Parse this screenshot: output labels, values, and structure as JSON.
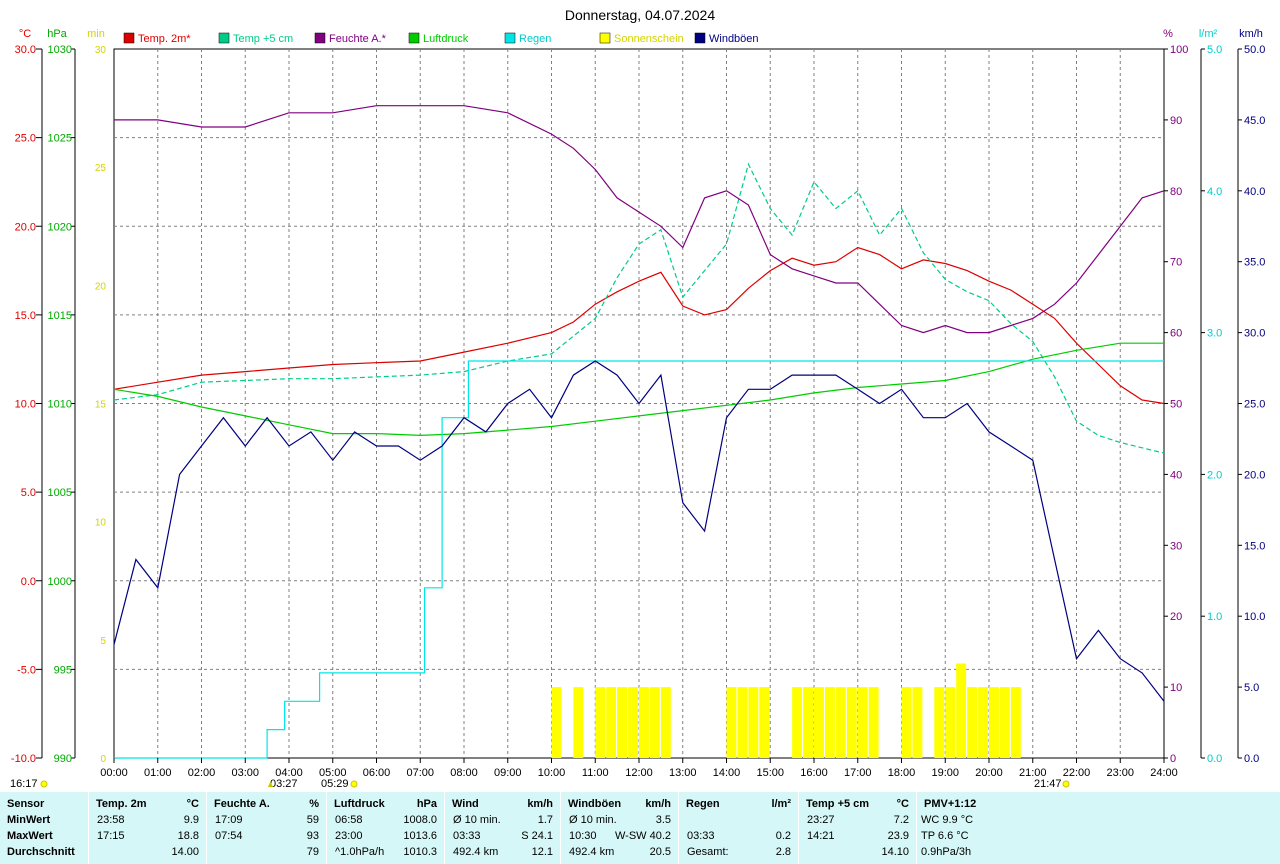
{
  "title": "Donnerstag, 04.07.2024",
  "colors": {
    "temp2m": "#dd0000",
    "temp5cm": "#00cc88",
    "humidity": "#800080",
    "pressure": "#00cc00",
    "rain": "#00e5e5",
    "sunshine": "#ffff00",
    "gusts": "#000080",
    "grid": "#808080",
    "stats_bg": "#d6f7f7"
  },
  "legend": [
    {
      "label": "Temp. 2m*",
      "color": "#dd0000"
    },
    {
      "label": "Temp +5 cm",
      "color": "#00cc88"
    },
    {
      "label": "Feuchte A.*",
      "color": "#800080"
    },
    {
      "label": "Luftdruck",
      "color": "#00cc00"
    },
    {
      "label": "Regen",
      "color": "#00e5e5"
    },
    {
      "label": "Sonnenschein",
      "color": "#ffff00"
    },
    {
      "label": "Windböen",
      "color": "#000080"
    }
  ],
  "axes": {
    "temp": {
      "unit": "°C",
      "min": -10,
      "max": 30,
      "ticks": [
        "30.0",
        "25.0",
        "20.0",
        "15.0",
        "10.0",
        "5.0",
        "0.0",
        "-5.0",
        "-10.0"
      ]
    },
    "pressure": {
      "unit": "hPa",
      "min": 990,
      "max": 1030,
      "ticks": [
        "1030",
        "1025",
        "1020",
        "1015",
        "1010",
        "1005",
        "1000",
        "995",
        "990"
      ]
    },
    "sun_min": {
      "unit": "min",
      "min": 0,
      "max": 30,
      "ticks": [
        "30",
        "25",
        "20",
        "15",
        "10",
        "5",
        "0"
      ]
    },
    "humidity": {
      "unit": "%",
      "min": 0,
      "max": 100,
      "ticks": [
        "100",
        "90",
        "80",
        "70",
        "60",
        "50",
        "40",
        "30",
        "20",
        "10",
        "0"
      ]
    },
    "rain": {
      "unit": "l/m²",
      "min": 0,
      "max": 5,
      "ticks": [
        "5.0",
        "4.0",
        "3.0",
        "2.0",
        "1.0",
        "0.0"
      ]
    },
    "wind": {
      "unit": "km/h",
      "min": 0,
      "max": 50,
      "ticks": [
        "50.0",
        "45.0",
        "40.0",
        "35.0",
        "30.0",
        "25.0",
        "20.0",
        "15.0",
        "10.0",
        "5.0",
        "0.0"
      ]
    },
    "x_ticks": [
      "00:00",
      "01:00",
      "02:00",
      "03:00",
      "04:00",
      "05:00",
      "06:00",
      "07:00",
      "08:00",
      "09:00",
      "10:00",
      "11:00",
      "12:00",
      "13:00",
      "14:00",
      "15:00",
      "16:00",
      "17:00",
      "18:00",
      "19:00",
      "20:00",
      "21:00",
      "22:00",
      "23:00",
      "24:00"
    ]
  },
  "markers": {
    "left": "16:17",
    "moon1": "03:27",
    "sun_rise": "05:29",
    "sun_set": "21:47"
  },
  "chart_data": {
    "type": "line",
    "title": "Donnerstag, 04.07.2024",
    "x_unit": "hour of day",
    "xlim": [
      0,
      24
    ],
    "series": [
      {
        "name": "Temp. 2m*",
        "axis": "temp",
        "x": [
          0,
          1,
          2,
          3,
          4,
          5,
          6,
          7,
          8,
          9,
          10,
          10.5,
          11,
          11.5,
          12,
          12.5,
          13,
          13.5,
          14,
          14.5,
          15,
          15.5,
          16,
          16.5,
          17,
          17.5,
          18,
          18.5,
          19,
          19.5,
          20,
          20.5,
          21,
          21.5,
          22,
          22.5,
          23,
          23.5,
          24
        ],
        "values": [
          10.8,
          11.2,
          11.6,
          11.8,
          12.0,
          12.2,
          12.3,
          12.4,
          12.9,
          13.4,
          14.0,
          14.6,
          15.6,
          16.3,
          16.9,
          17.4,
          15.5,
          15.0,
          15.3,
          16.5,
          17.5,
          18.2,
          17.8,
          18.0,
          18.8,
          18.4,
          17.6,
          18.1,
          17.9,
          17.5,
          16.9,
          16.4,
          15.6,
          14.8,
          13.4,
          12.2,
          11.0,
          10.2,
          10.0
        ]
      },
      {
        "name": "Temp +5 cm",
        "axis": "temp",
        "x": [
          0,
          1,
          2,
          3,
          4,
          5,
          6,
          7,
          8,
          9,
          10,
          10.5,
          11,
          11.5,
          12,
          12.5,
          13,
          13.5,
          14,
          14.5,
          15,
          15.5,
          16,
          16.5,
          17,
          17.5,
          18,
          18.5,
          19,
          19.5,
          20,
          20.5,
          21,
          21.5,
          22,
          22.5,
          23,
          23.5,
          24
        ],
        "values": [
          10.2,
          10.5,
          11.2,
          11.3,
          11.4,
          11.4,
          11.5,
          11.6,
          11.8,
          12.4,
          12.8,
          13.8,
          14.8,
          17.1,
          19.0,
          19.8,
          16.0,
          17.5,
          19.0,
          23.5,
          21.0,
          19.5,
          22.5,
          21.0,
          22.0,
          19.5,
          21.0,
          18.5,
          17.0,
          16.3,
          15.8,
          14.5,
          13.5,
          11.5,
          9.0,
          8.2,
          7.8,
          7.5,
          7.2
        ]
      },
      {
        "name": "Feuchte A.*",
        "axis": "humidity",
        "x": [
          0,
          1,
          2,
          3,
          4,
          5,
          6,
          7,
          8,
          9,
          10,
          10.5,
          11,
          11.5,
          12,
          12.5,
          13,
          13.5,
          14,
          14.5,
          15,
          15.5,
          16,
          16.5,
          17,
          17.5,
          18,
          18.5,
          19,
          19.5,
          20,
          20.5,
          21,
          21.5,
          22,
          22.5,
          23,
          23.5,
          24
        ],
        "values": [
          90,
          90,
          89,
          89,
          91,
          91,
          92,
          92,
          92,
          91,
          88,
          86,
          83,
          79,
          77,
          75,
          72,
          79,
          80,
          78,
          71,
          69,
          68,
          67,
          67,
          64,
          61,
          60,
          61,
          60,
          60,
          61,
          62,
          64,
          67,
          71,
          75,
          79,
          80
        ]
      },
      {
        "name": "Luftdruck",
        "axis": "pressure",
        "x": [
          0,
          1,
          2,
          3,
          4,
          5,
          6,
          7,
          8,
          9,
          10,
          11,
          12,
          13,
          14,
          15,
          16,
          17,
          18,
          19,
          20,
          21,
          22,
          23,
          24
        ],
        "values": [
          1010.8,
          1010.4,
          1009.8,
          1009.3,
          1008.8,
          1008.3,
          1008.3,
          1008.2,
          1008.3,
          1008.5,
          1008.7,
          1009.0,
          1009.3,
          1009.6,
          1009.9,
          1010.2,
          1010.6,
          1010.9,
          1011.1,
          1011.3,
          1011.8,
          1012.5,
          1013.0,
          1013.4,
          1013.4
        ]
      },
      {
        "name": "Regen",
        "axis": "rain",
        "type": "step",
        "x": [
          0,
          3.5,
          3.9,
          4.7,
          6.9,
          7.1,
          7.5,
          8.1,
          24
        ],
        "values": [
          0,
          0.2,
          0.4,
          0.6,
          0.6,
          1.2,
          2.4,
          2.8,
          2.8
        ]
      },
      {
        "name": "Windböen",
        "axis": "wind",
        "x": [
          0,
          0.5,
          1,
          1.5,
          2,
          2.5,
          3,
          3.5,
          4,
          4.5,
          5,
          5.5,
          6,
          6.5,
          7,
          7.5,
          8,
          8.5,
          9,
          9.5,
          10,
          10.5,
          11,
          11.5,
          12,
          12.5,
          13,
          13.5,
          14,
          14.5,
          15,
          15.5,
          16,
          16.5,
          17,
          17.5,
          18,
          18.5,
          19,
          19.5,
          20,
          20.5,
          21,
          21.5,
          22,
          22.5,
          23,
          23.5,
          24
        ],
        "values": [
          8,
          14,
          12,
          20,
          22,
          24,
          22,
          24,
          22,
          23,
          21,
          23,
          22,
          22,
          21,
          22,
          24,
          23,
          25,
          26,
          24,
          27,
          28,
          27,
          25,
          27,
          18,
          16,
          24,
          26,
          26,
          27,
          27,
          27,
          26,
          25,
          26,
          24,
          24,
          25,
          23,
          22,
          21,
          14,
          7,
          9,
          7,
          6,
          4
        ]
      },
      {
        "name": "Sonnenschein",
        "axis": "sun_min",
        "type": "bar",
        "x": [
          10.0,
          10.5,
          11.0,
          11.25,
          11.5,
          11.75,
          12.0,
          12.25,
          12.5,
          14.0,
          14.25,
          14.5,
          14.75,
          15.5,
          15.75,
          16.0,
          16.25,
          16.5,
          16.75,
          17.0,
          17.25,
          18.0,
          18.25,
          18.75,
          19.0,
          19.25,
          19.5,
          19.75,
          20.0,
          20.25,
          20.5
        ],
        "values": [
          3,
          3,
          3,
          3,
          3,
          3,
          3,
          3,
          3,
          3,
          3,
          3,
          3,
          3,
          3,
          3,
          3,
          3,
          3,
          3,
          3,
          3,
          3,
          3,
          3,
          4,
          3,
          3,
          3,
          3,
          3
        ]
      }
    ]
  },
  "stats": {
    "headers": [
      {
        "label": "Sensor",
        "unit": ""
      },
      {
        "label": "Temp. 2m",
        "unit": "°C"
      },
      {
        "label": "Feuchte A.",
        "unit": "%"
      },
      {
        "label": "Luftdruck",
        "unit": "hPa"
      },
      {
        "label": "Wind",
        "unit": "km/h"
      },
      {
        "label": "Windböen",
        "unit": "km/h"
      },
      {
        "label": "Regen",
        "unit": "l/m²"
      },
      {
        "label": "Temp +5 cm",
        "unit": "°C"
      },
      {
        "label": "PMV+1:12",
        "unit": ""
      }
    ],
    "rows": [
      {
        "label": "MinWert",
        "cells": [
          [
            "23:58",
            "9.9"
          ],
          [
            "17:09",
            "59"
          ],
          [
            "06:58",
            "1008.0"
          ],
          [
            "Ø 10 min.",
            "1.7"
          ],
          [
            "Ø 10 min.",
            "3.5"
          ],
          [
            "",
            ""
          ],
          [
            "23:27",
            "7.2"
          ],
          [
            "WC 9.9 °C",
            ""
          ]
        ]
      },
      {
        "label": "MaxWert",
        "cells": [
          [
            "17:15",
            "18.8"
          ],
          [
            "07:54",
            "93"
          ],
          [
            "23:00",
            "1013.6"
          ],
          [
            "03:33",
            "S 24.1"
          ],
          [
            "10:30",
            "W-SW 40.2"
          ],
          [
            "03:33",
            "0.2"
          ],
          [
            "14:21",
            "23.9"
          ],
          [
            "TP 6.6 °C",
            ""
          ]
        ]
      },
      {
        "label": "Durchschnitt",
        "cells": [
          [
            "",
            "14.00"
          ],
          [
            "",
            "79"
          ],
          [
            "^1.0hPa/h",
            "1010.3"
          ],
          [
            "492.4 km",
            "12.1"
          ],
          [
            "492.4 km",
            "20.5"
          ],
          [
            "Gesamt:",
            "2.8"
          ],
          [
            "",
            "14.10"
          ],
          [
            "0.9hPa/3h",
            ""
          ]
        ]
      }
    ]
  }
}
